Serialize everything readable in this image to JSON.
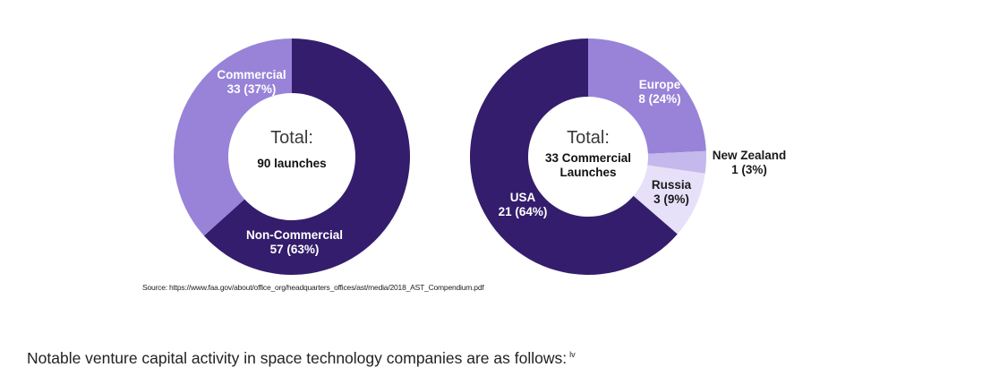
{
  "chart_data": [
    {
      "type": "pie",
      "donut": true,
      "center_label": {
        "word": "Total:",
        "detail": [
          "90 launches"
        ]
      },
      "slices": [
        {
          "name": "Non-Commercial",
          "value": 57,
          "label_lines": [
            "Non-Commercial",
            "57 (63%)"
          ],
          "color": "#341d6c",
          "text_color": "#ffffff"
        },
        {
          "name": "Commercial",
          "value": 33,
          "label_lines": [
            "Commercial",
            "33 (37%)"
          ],
          "color": "#9883d8",
          "text_color": "#ffffff"
        }
      ]
    },
    {
      "type": "pie",
      "donut": true,
      "center_label": {
        "word": "Total:",
        "detail": [
          "33 Commercial",
          "Launches"
        ]
      },
      "slices": [
        {
          "name": "Europe",
          "value": 8,
          "label_lines": [
            "Europe",
            "8 (24%)"
          ],
          "color": "#9883d8",
          "text_color": "#ffffff"
        },
        {
          "name": "New Zealand",
          "value": 1,
          "label_lines": [
            "New Zealand",
            "1 (3%)"
          ],
          "color": "#c4b8ec",
          "text_color": "#1a1a1a"
        },
        {
          "name": "Russia",
          "value": 3,
          "label_lines": [
            "Russia",
            "3 (9%)"
          ],
          "color": "#e6e0f8",
          "text_color": "#1a1a1a"
        },
        {
          "name": "USA",
          "value": 21,
          "label_lines": [
            "USA",
            "21 (64%)"
          ],
          "color": "#341d6c",
          "text_color": "#ffffff"
        }
      ]
    }
  ],
  "source": "Source: https://www.faa.gov/about/office_org/headquarters_offices/ast/media/2018_AST_Compendium.pdf",
  "body_text": "Notable venture capital activity in space technology companies are as follows:",
  "footnote_marker": "lv"
}
